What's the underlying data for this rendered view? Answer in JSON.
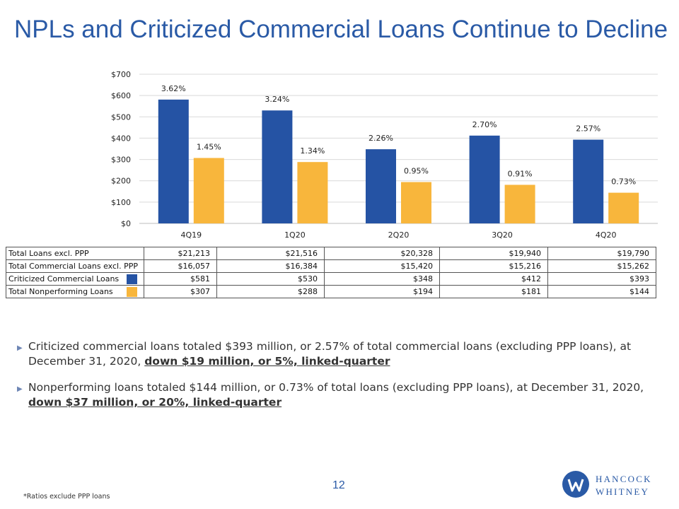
{
  "title": "NPLs and Criticized Commercial Loans Continue to Decline",
  "chart_data": {
    "type": "bar",
    "categories": [
      "4Q19",
      "1Q20",
      "2Q20",
      "3Q20",
      "4Q20"
    ],
    "series": [
      {
        "name": "Criticized Commercial Loans",
        "color": "#2553a4",
        "values": [
          581,
          530,
          348,
          412,
          393
        ],
        "labels": [
          "3.62%",
          "3.24%",
          "2.26%",
          "2.70%",
          "2.57%"
        ]
      },
      {
        "name": "Total Nonperforming Loans",
        "color": "#f8b63c",
        "values": [
          307,
          288,
          194,
          181,
          144
        ],
        "labels": [
          "1.45%",
          "1.34%",
          "0.95%",
          "0.91%",
          "0.73%"
        ]
      }
    ],
    "yticks": [
      "$0",
      "$100",
      "$200",
      "$300",
      "$400",
      "$500",
      "$600",
      "$700"
    ],
    "ylim": [
      0,
      700
    ],
    "grid": true
  },
  "table": {
    "rows": [
      {
        "label": "Total Loans excl. PPP",
        "values": [
          "$21,213",
          "$21,516",
          "$20,328",
          "$19,940",
          "$19,790"
        ]
      },
      {
        "label": "Total Commercial Loans excl. PPP",
        "values": [
          "$16,057",
          "$16,384",
          "$15,420",
          "$15,216",
          "$15,262"
        ]
      },
      {
        "label": "Criticized Commercial Loans",
        "swatch": "#2553a4",
        "values": [
          "$581",
          "$530",
          "$348",
          "$412",
          "$393"
        ]
      },
      {
        "label": "Total Nonperforming Loans",
        "swatch": "#f8b63c",
        "values": [
          "$307",
          "$288",
          "$194",
          "$181",
          "$144"
        ]
      }
    ]
  },
  "bullets": [
    {
      "text": "Criticized commercial loans totaled $393 million, or 2.57% of total commercial loans (excluding PPP loans), at December 31, 2020,",
      "emphasis": "down $19 million, or 5%, linked-quarter"
    },
    {
      "text": "Nonperforming loans totaled $144 million, or 0.73% of total loans (excluding PPP loans), at December 31, 2020,",
      "emphasis": "down $37 million, or 20%, linked-quarter"
    }
  ],
  "page_number": "12",
  "footnote": "*Ratios exclude PPP loans",
  "logo": {
    "line1": "HANCOCK",
    "line2": "WHITNEY",
    "icon": "hancock-whitney-w-icon"
  }
}
